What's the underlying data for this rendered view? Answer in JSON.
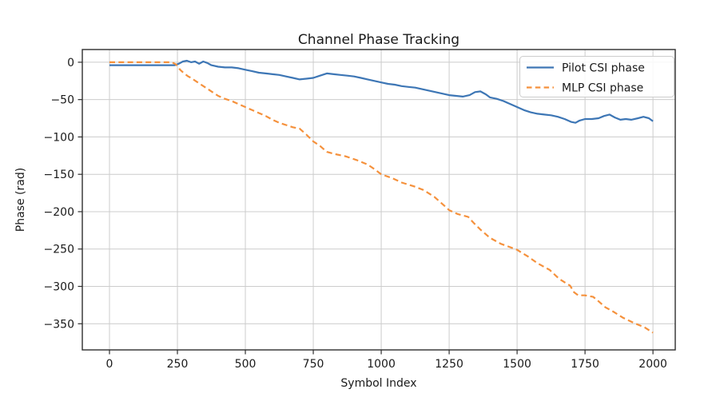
{
  "chart_data": {
    "type": "line",
    "title": "Channel Phase Tracking",
    "xlabel": "Symbol Index",
    "ylabel": "Phase (rad)",
    "xlim": [
      -100,
      2082
    ],
    "ylim": [
      -385,
      17
    ],
    "xticks": [
      0,
      250,
      500,
      750,
      1000,
      1250,
      1500,
      1750,
      2000
    ],
    "yticks": [
      0,
      -50,
      -100,
      -150,
      -200,
      -250,
      -300,
      -350
    ],
    "grid": true,
    "legend_position": "upper right",
    "background_color": "#ffffff",
    "grid_color": "#cccccc",
    "spine_color": "#2d2d2d",
    "text_color": "#1a1a1a",
    "series": [
      {
        "name": "Pilot CSI phase",
        "color": "#3d76b5",
        "style": "solid",
        "x": [
          0,
          50,
          100,
          150,
          200,
          240,
          255,
          270,
          285,
          300,
          315,
          330,
          345,
          360,
          375,
          400,
          425,
          450,
          475,
          500,
          525,
          550,
          575,
          600,
          625,
          650,
          675,
          700,
          725,
          750,
          775,
          800,
          825,
          850,
          875,
          900,
          925,
          950,
          975,
          1000,
          1025,
          1050,
          1075,
          1100,
          1125,
          1150,
          1175,
          1200,
          1225,
          1250,
          1275,
          1300,
          1325,
          1345,
          1365,
          1385,
          1400,
          1425,
          1450,
          1475,
          1500,
          1525,
          1550,
          1575,
          1600,
          1625,
          1650,
          1675,
          1700,
          1715,
          1730,
          1750,
          1775,
          1800,
          1820,
          1840,
          1860,
          1880,
          1900,
          1920,
          1945,
          1965,
          1985,
          2000
        ],
        "y": [
          -4,
          -4,
          -4,
          -4,
          -4,
          -4,
          -2,
          1,
          2,
          0,
          1,
          -2,
          1,
          -1,
          -4,
          -6,
          -7,
          -7,
          -8,
          -10,
          -12,
          -14,
          -15,
          -16,
          -17,
          -19,
          -21,
          -23,
          -22,
          -21,
          -18,
          -15,
          -16,
          -17,
          -18,
          -19,
          -21,
          -23,
          -25,
          -27,
          -29,
          -30,
          -32,
          -33,
          -34,
          -36,
          -38,
          -40,
          -42,
          -44,
          -45,
          -46,
          -44,
          -40,
          -39,
          -43,
          -47,
          -49,
          -52,
          -56,
          -60,
          -64,
          -67,
          -69,
          -70,
          -71,
          -73,
          -76,
          -80,
          -81,
          -78,
          -76,
          -76,
          -75,
          -72,
          -70,
          -74,
          -77,
          -76,
          -77,
          -75,
          -73,
          -75,
          -79
        ],
        "legend_label": "Pilot CSI phase"
      },
      {
        "name": "MLP CSI phase",
        "color": "#f5913c",
        "style": "dashed",
        "x": [
          0,
          50,
          100,
          150,
          200,
          230,
          245,
          260,
          275,
          290,
          300,
          325,
          350,
          375,
          400,
          425,
          450,
          475,
          500,
          525,
          550,
          575,
          600,
          625,
          650,
          675,
          700,
          725,
          750,
          775,
          800,
          830,
          870,
          910,
          950,
          975,
          1000,
          1040,
          1075,
          1120,
          1155,
          1195,
          1235,
          1250,
          1280,
          1320,
          1340,
          1365,
          1400,
          1440,
          1470,
          1500,
          1540,
          1575,
          1620,
          1655,
          1695,
          1710,
          1725,
          1750,
          1780,
          1800,
          1825,
          1855,
          1890,
          1930,
          1970,
          2000
        ],
        "y": [
          0,
          0,
          0,
          0,
          0,
          0,
          -3,
          -10,
          -15,
          -19,
          -21,
          -27,
          -33,
          -39,
          -45,
          -49,
          -52,
          -56,
          -60,
          -64,
          -68,
          -72,
          -77,
          -81,
          -84,
          -87,
          -89,
          -97,
          -106,
          -112,
          -120,
          -123,
          -126,
          -131,
          -137,
          -143,
          -150,
          -155,
          -161,
          -166,
          -171,
          -180,
          -193,
          -198,
          -203,
          -207,
          -215,
          -224,
          -235,
          -243,
          -247,
          -251,
          -260,
          -269,
          -278,
          -290,
          -299,
          -308,
          -312,
          -312,
          -314,
          -320,
          -328,
          -334,
          -342,
          -349,
          -355,
          -362
        ],
        "legend_label": "MLP CSI phase"
      }
    ]
  }
}
